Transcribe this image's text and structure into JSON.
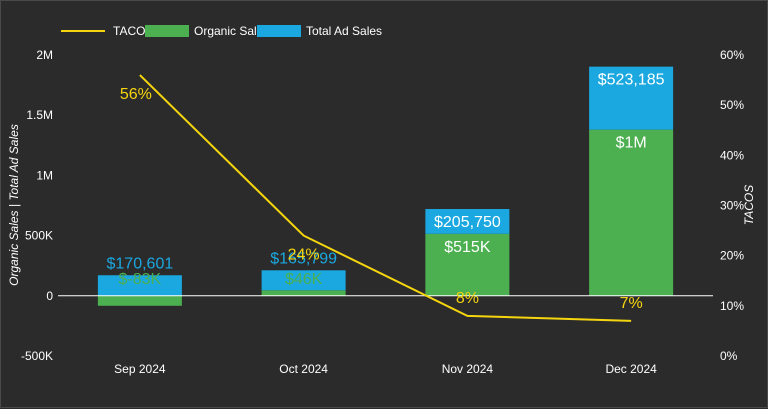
{
  "chart_data": {
    "type": "bar",
    "stacked": true,
    "categories": [
      "Sep 2024",
      "Oct 2024",
      "Nov 2024",
      "Dec 2024"
    ],
    "series": [
      {
        "name": "Organic Sales",
        "axis": "left",
        "color": "#4caf50",
        "values": [
          -83000,
          46000,
          515000,
          1380000
        ],
        "labels": [
          "$-83K",
          "$46K",
          "$515K",
          "$1M"
        ]
      },
      {
        "name": "Total Ad Sales",
        "axis": "left",
        "color": "#1ba8e0",
        "values": [
          170601,
          165799,
          205750,
          523185
        ],
        "labels": [
          "$170,601",
          "$165,799",
          "$205,750",
          "$523,185"
        ]
      },
      {
        "name": "TACOS",
        "type": "line",
        "axis": "right",
        "color": "#f5d60e",
        "values": [
          56,
          24,
          8,
          7
        ],
        "labels": [
          "56%",
          "24%",
          "8%",
          "7%"
        ]
      }
    ],
    "y_left": {
      "title": "Organic Sales | Total Ad Sales",
      "range": [
        -500000,
        2000000
      ],
      "ticks": [
        -500000,
        0,
        500000,
        1000000,
        1500000,
        2000000
      ],
      "tick_labels": [
        "-500K",
        "0",
        "500K",
        "1M",
        "1.5M",
        "2M"
      ]
    },
    "y_right": {
      "title": "TACOS",
      "range": [
        0,
        60
      ],
      "ticks": [
        0,
        10,
        20,
        30,
        40,
        50,
        60
      ],
      "tick_labels": [
        "0%",
        "10%",
        "20%",
        "30%",
        "40%",
        "50%",
        "60%"
      ]
    },
    "legend": {
      "position": "top-left",
      "items": [
        "TACOS",
        "Organic Sales",
        "Total Ad Sales"
      ]
    }
  }
}
